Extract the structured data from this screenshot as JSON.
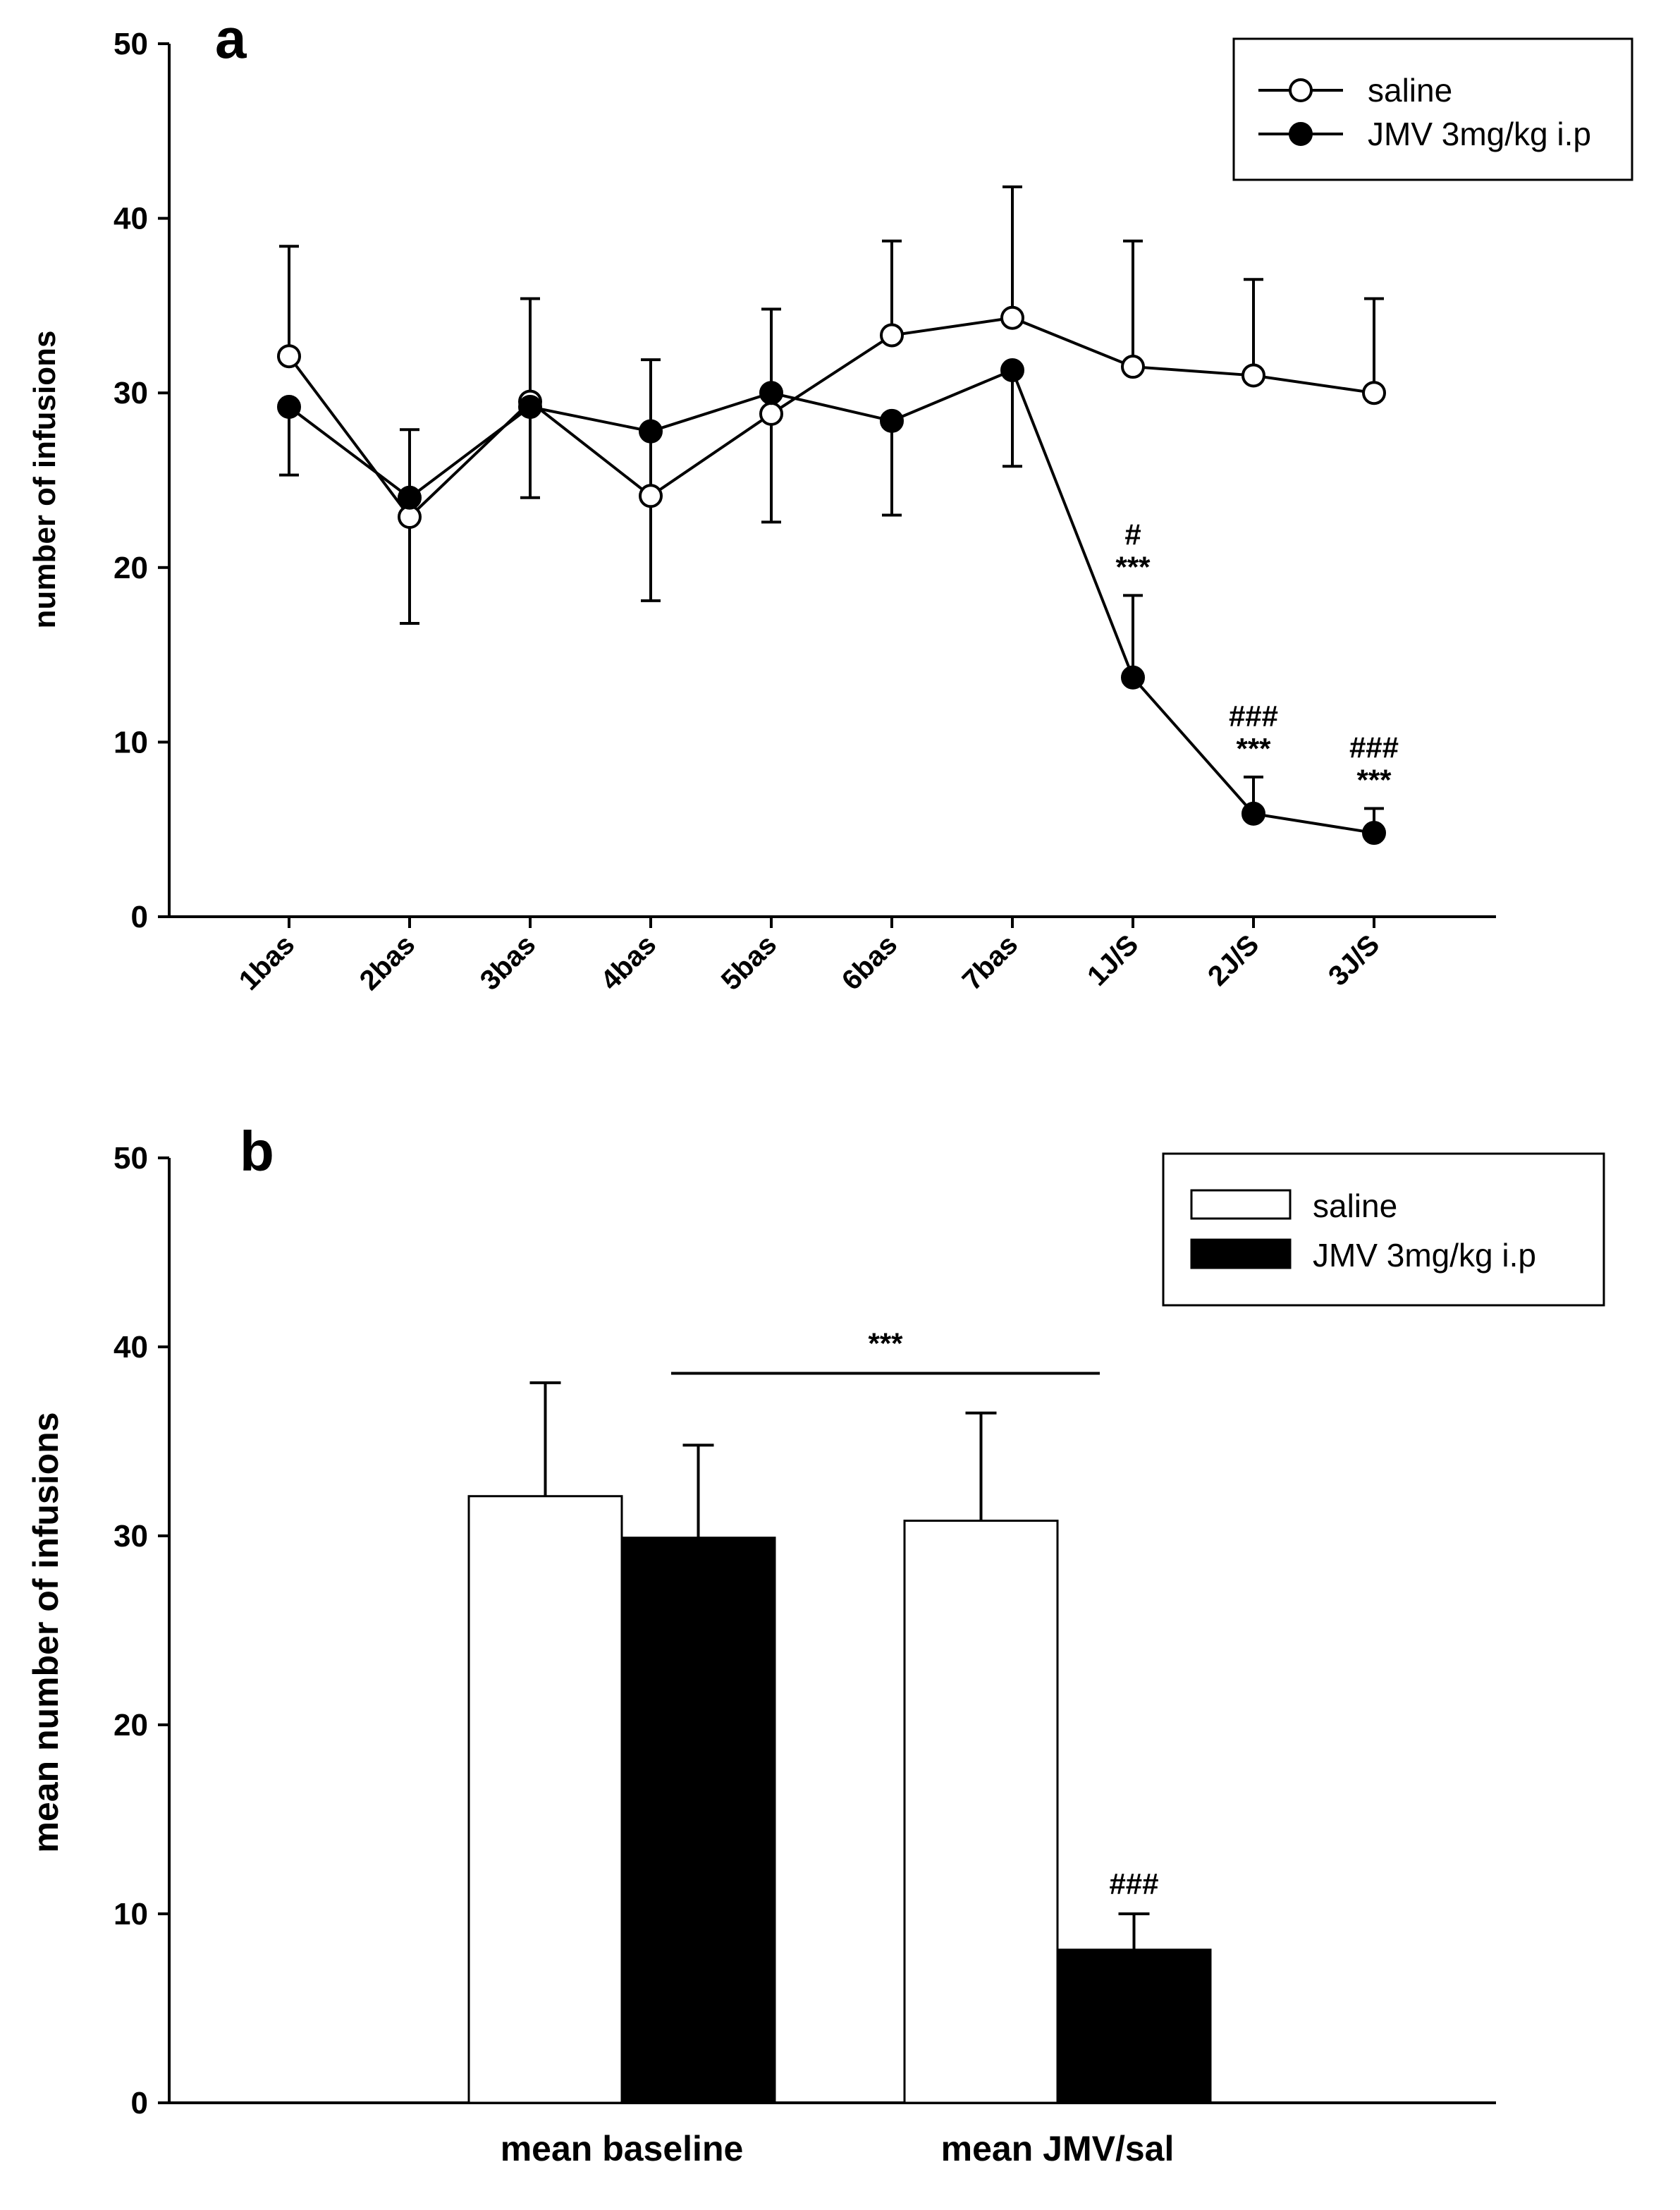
{
  "panels": {
    "a": {
      "label": "a"
    },
    "b": {
      "label": "b"
    }
  },
  "colors": {
    "saline": "#ffffff",
    "jmv": "#000000",
    "axis": "#000000"
  },
  "chart_data": [
    {
      "panel": "a",
      "type": "line",
      "ylabel": "number of infusions",
      "xlabel": "",
      "ylim": [
        0,
        50
      ],
      "yticks": [
        "0",
        "10",
        "20",
        "30",
        "40",
        "50"
      ],
      "categories": [
        "1bas",
        "2bas",
        "3bas",
        "4bas",
        "5bas",
        "6bas",
        "7bas",
        "1J/S",
        "2J/S",
        "3J/S"
      ],
      "legend": {
        "position": "top-right",
        "entries": [
          "saline",
          "JMV 3mg/kg i.p"
        ]
      },
      "series": [
        {
          "name": "saline",
          "marker": "open-circle",
          "values": [
            32.1,
            22.9,
            29.5,
            24.1,
            28.8,
            33.3,
            34.3,
            31.5,
            31.0,
            30.0
          ],
          "error_upper": [
            38.4,
            27.9,
            35.4,
            31.9,
            34.8,
            38.7,
            41.8,
            38.7,
            36.5,
            35.4
          ],
          "error_lower": [
            null,
            16.8,
            null,
            18.1,
            22.6,
            null,
            null,
            null,
            null,
            null
          ]
        },
        {
          "name": "JMV 3mg/kg i.p",
          "marker": "filled-circle",
          "values": [
            29.2,
            24.0,
            29.2,
            27.8,
            30.0,
            28.4,
            31.3,
            13.7,
            5.9,
            4.8
          ],
          "error_upper": [
            null,
            null,
            null,
            null,
            null,
            null,
            null,
            18.4,
            8.0,
            6.2
          ],
          "error_lower": [
            25.3,
            null,
            24.0,
            null,
            null,
            23.0,
            25.8,
            null,
            null,
            null
          ]
        }
      ],
      "annotations": [
        {
          "category": "1J/S",
          "lines": [
            "#",
            "***"
          ]
        },
        {
          "category": "2J/S",
          "lines": [
            "###",
            "***"
          ]
        },
        {
          "category": "3J/S",
          "lines": [
            "###",
            "***"
          ]
        }
      ]
    },
    {
      "panel": "b",
      "type": "bar",
      "ylabel": "mean number of infusions",
      "xlabel": "",
      "ylim": [
        0,
        50
      ],
      "yticks": [
        "0",
        "10",
        "20",
        "30",
        "40",
        "50"
      ],
      "categories": [
        "mean baseline",
        "mean JMV/sal"
      ],
      "legend": {
        "position": "top-right",
        "entries": [
          "saline",
          "JMV 3mg/kg i.p"
        ]
      },
      "series": [
        {
          "name": "saline",
          "values": [
            32.1,
            30.8
          ],
          "error_upper": [
            38.1,
            36.5
          ]
        },
        {
          "name": "JMV 3mg/kg i.p",
          "values": [
            29.9,
            8.1
          ],
          "error_upper": [
            34.8,
            10.0
          ]
        }
      ],
      "annotations": [
        {
          "type": "bracket",
          "text": "***",
          "y": 38.6,
          "from": "mean baseline",
          "to": "mean JMV/sal"
        },
        {
          "type": "label",
          "text": "###",
          "category": "mean JMV/sal",
          "series": "JMV 3mg/kg i.p"
        }
      ]
    }
  ]
}
